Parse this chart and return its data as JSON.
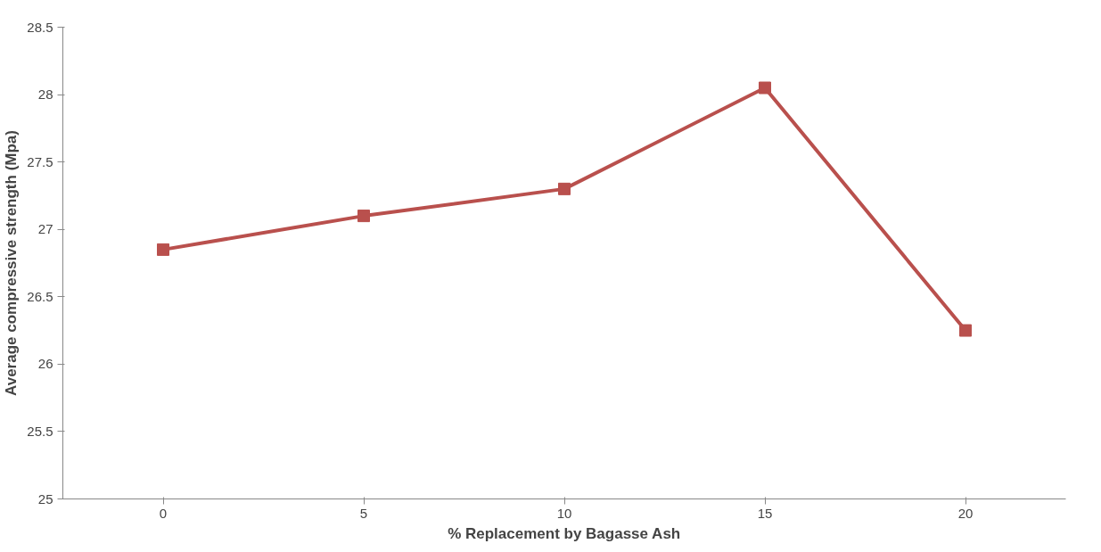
{
  "chart_data": {
    "type": "line",
    "xlabel": "% Replacement by Bagasse Ash",
    "ylabel": "Average compressive strength (Mpa)",
    "categories": [
      "0",
      "5",
      "10",
      "15",
      "20"
    ],
    "series": [
      {
        "color": "#b9504d",
        "values": [
          26.85,
          27.1,
          27.3,
          28.05,
          26.25
        ]
      }
    ],
    "ylim": [
      25,
      28.5
    ],
    "yticks": [
      25,
      25.5,
      26,
      26.5,
      27,
      27.5,
      28,
      28.5
    ],
    "grid": false,
    "marker": "square",
    "line_style": "solid"
  }
}
